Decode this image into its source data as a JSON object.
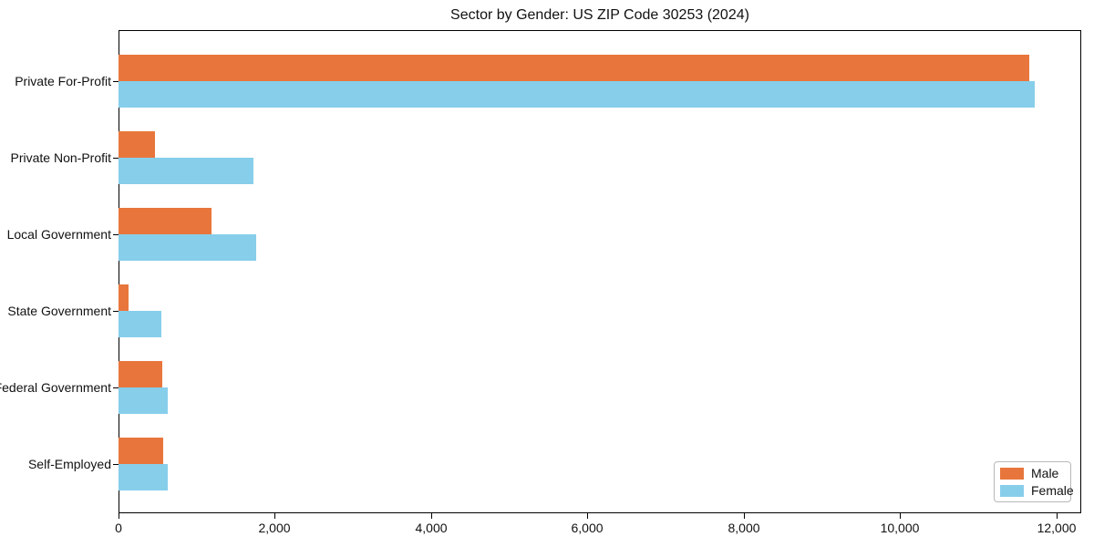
{
  "chart_data": {
    "type": "bar",
    "orientation": "horizontal",
    "title": "Sector by Gender: US ZIP Code 30253 (2024)",
    "categories": [
      "Private For-Profit",
      "Private Non-Profit",
      "Local Government",
      "State Government",
      "Federal Government",
      "Self-Employed"
    ],
    "series": [
      {
        "name": "Male",
        "color": "#e8763c",
        "values": [
          11650,
          465,
          1190,
          125,
          555,
          570
        ]
      },
      {
        "name": "Female",
        "color": "#87ceeb",
        "values": [
          11730,
          1730,
          1765,
          545,
          625,
          630
        ]
      }
    ],
    "xlabel": "",
    "ylabel": "",
    "xlim": [
      0,
      12320
    ],
    "xticks": [
      0,
      2000,
      4000,
      6000,
      8000,
      10000,
      12000
    ],
    "xtick_labels": [
      "0",
      "2,000",
      "4,000",
      "6,000",
      "8,000",
      "10,000",
      "12,000"
    ],
    "grid": false,
    "legend": {
      "position": "lower right"
    }
  }
}
